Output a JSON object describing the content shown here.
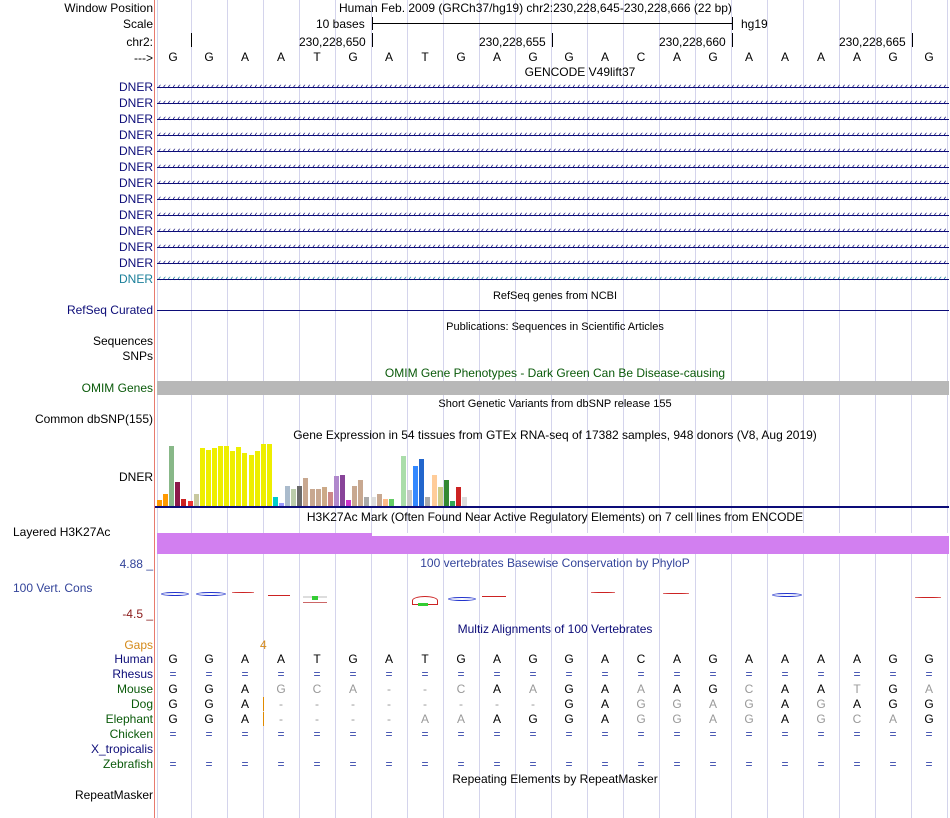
{
  "header": {
    "window_position_label": "Window Position",
    "assembly_text": "Human Feb. 2009 (GRCh37/hg19)   chr2:230,228,645-230,228,666 (22 bp)",
    "scale_label": "Scale",
    "scale_text": "10 bases",
    "scale_db": "hg19",
    "chrom_label": "chr2:",
    "positions": [
      "230,228,650",
      "230,228,655",
      "230,228,660",
      "230,228,665"
    ],
    "strand_label": "--->"
  },
  "sequence": [
    "G",
    "G",
    "A",
    "A",
    "T",
    "G",
    "A",
    "T",
    "G",
    "A",
    "G",
    "G",
    "A",
    "C",
    "A",
    "G",
    "A",
    "A",
    "A",
    "A",
    "G",
    "G"
  ],
  "gencode": {
    "title": "GENCODE V49lift37",
    "rows": [
      "DNER",
      "DNER",
      "DNER",
      "DNER",
      "DNER",
      "DNER",
      "DNER",
      "DNER",
      "DNER",
      "DNER",
      "DNER",
      "DNER"
    ],
    "last_row": "DNER",
    "arrows": "‹‹‹‹‹‹‹‹‹‹‹‹‹‹‹‹‹‹‹‹‹‹‹‹‹‹‹‹‹‹‹‹‹‹‹‹‹‹‹‹‹‹‹‹‹‹‹‹‹‹‹‹‹‹‹‹‹‹‹‹‹‹‹‹‹‹‹‹‹‹‹‹‹‹‹‹‹‹‹‹‹‹‹‹‹‹‹‹‹‹‹‹‹‹‹‹‹‹‹‹‹‹‹‹‹‹‹‹‹‹‹‹‹‹‹‹‹‹‹‹‹‹‹‹‹‹‹‹‹‹‹‹‹‹‹‹‹‹‹‹‹‹‹‹‹‹‹‹‹‹‹‹‹‹‹‹‹‹‹‹‹‹‹‹"
  },
  "refseq": {
    "title": "RefSeq genes from NCBI",
    "label": "RefSeq Curated"
  },
  "publications": {
    "title": "Publications: Sequences in Scientific Articles",
    "label1": "Sequences",
    "label2": "SNPs"
  },
  "omim": {
    "title": "OMIM Gene Phenotypes - Dark Green Can Be Disease-causing",
    "label": "OMIM Genes"
  },
  "dbsnp": {
    "title": "Short Genetic Variants from dbSNP release 155",
    "label": "Common dbSNP(155)"
  },
  "gtex": {
    "title": "Gene Expression in 54 tissues from GTEx RNA-seq of 17382 samples, 948 donors (V8, Aug 2019)",
    "label": "DNER",
    "bars": [
      {
        "v": 0.1,
        "c": "#ff9a00"
      },
      {
        "v": 0.2,
        "c": "#ff9a00"
      },
      {
        "v": 0.97,
        "c": "#88b888"
      },
      {
        "v": 0.38,
        "c": "#8c1a4a"
      },
      {
        "v": 0.12,
        "c": "#cc2222"
      },
      {
        "v": 0.08,
        "c": "#ee3333"
      },
      {
        "v": 0.2,
        "c": "#c8c8a0"
      },
      {
        "v": 0.93,
        "c": "#eeee00"
      },
      {
        "v": 0.9,
        "c": "#eeee00"
      },
      {
        "v": 0.93,
        "c": "#eeee00"
      },
      {
        "v": 0.97,
        "c": "#eeee00"
      },
      {
        "v": 0.97,
        "c": "#eeee00"
      },
      {
        "v": 0.88,
        "c": "#eeee00"
      },
      {
        "v": 0.95,
        "c": "#eeee00"
      },
      {
        "v": 0.85,
        "c": "#eeee00"
      },
      {
        "v": 0.82,
        "c": "#eeee00"
      },
      {
        "v": 0.88,
        "c": "#eeee00"
      },
      {
        "v": 1.0,
        "c": "#eeee00"
      },
      {
        "v": 1.0,
        "c": "#eeee00"
      },
      {
        "v": 0.15,
        "c": "#00cccc"
      },
      {
        "v": 0.05,
        "c": "#9999ff"
      },
      {
        "v": 0.32,
        "c": "#aabbcc"
      },
      {
        "v": 0.28,
        "c": "#bbccaa"
      },
      {
        "v": 0.32,
        "c": "#6a6a6a"
      },
      {
        "v": 0.45,
        "c": "#c8a890"
      },
      {
        "v": 0.28,
        "c": "#c8a890"
      },
      {
        "v": 0.28,
        "c": "#c8a890"
      },
      {
        "v": 0.3,
        "c": "#ccaa88"
      },
      {
        "v": 0.22,
        "c": "#cc8888"
      },
      {
        "v": 0.48,
        "c": "#b088cc"
      },
      {
        "v": 0.5,
        "c": "#884499"
      },
      {
        "v": 0.1,
        "c": "#cc33cc"
      },
      {
        "v": 0.32,
        "c": "#c8a890"
      },
      {
        "v": 0.42,
        "c": "#c8a890"
      },
      {
        "v": 0.15,
        "c": "#aaaaaa"
      },
      {
        "v": 0.15,
        "c": "#dddddd"
      },
      {
        "v": 0.2,
        "c": "#c8a890"
      },
      {
        "v": 0.12,
        "c": "#ffbb88"
      },
      {
        "v": 0.12,
        "c": "#66cc66"
      },
      {
        "v": 0.0,
        "c": "#ffffff"
      },
      {
        "v": 0.8,
        "c": "#aaddaa"
      },
      {
        "v": 0.25,
        "c": "#c8c8c8"
      },
      {
        "v": 0.65,
        "c": "#3388ff"
      },
      {
        "v": 0.75,
        "c": "#2266cc"
      },
      {
        "v": 0.15,
        "c": "#aaaaaa"
      },
      {
        "v": 0.5,
        "c": "#ffcc99"
      },
      {
        "v": 0.3,
        "c": "#cccc88"
      },
      {
        "v": 0.42,
        "c": "#338833"
      },
      {
        "v": 0.08,
        "c": "#33aa55"
      },
      {
        "v": 0.3,
        "c": "#cc2222"
      },
      {
        "v": 0.15,
        "c": "#dddddd"
      },
      {
        "v": 0.0,
        "c": "#ffffff"
      },
      {
        "v": 0.0,
        "c": "#ffffff"
      },
      {
        "v": 0.0,
        "c": "#ffffff"
      }
    ]
  },
  "h3k27ac": {
    "title": "H3K27Ac Mark (Often Found Near Active Regulatory Elements) on 7 cell lines from ENCODE",
    "label": "Layered H3K27Ac"
  },
  "phylop": {
    "title": "100 vertebrates Basewise Conservation by PhyloP",
    "label": "100 Vert. Cons",
    "max": "4.88 _",
    "min": "-4.5 _"
  },
  "multiz": {
    "title": "Multiz Alignments of 100 Vertebrates",
    "gaps_label": "Gaps",
    "gaps_value": "4",
    "species": [
      {
        "name": "Human",
        "bases": [
          "G",
          "G",
          "A",
          "A",
          "T",
          "G",
          "A",
          "T",
          "G",
          "A",
          "G",
          "G",
          "A",
          "C",
          "A",
          "G",
          "A",
          "A",
          "A",
          "A",
          "G",
          "G"
        ]
      },
      {
        "name": "Rhesus",
        "bases": [
          "=",
          "=",
          "=",
          "=",
          "=",
          "=",
          "=",
          "=",
          "=",
          "=",
          "=",
          "=",
          "=",
          "=",
          "=",
          "=",
          "=",
          "=",
          "=",
          "=",
          "=",
          "="
        ]
      },
      {
        "name": "Mouse",
        "bases": [
          "G",
          "G",
          "A",
          "G",
          "C",
          "A",
          "-",
          "-",
          "C",
          "A",
          "A",
          "G",
          "A",
          "A",
          "A",
          "G",
          "C",
          "A",
          "A",
          "T",
          "G",
          "A"
        ]
      },
      {
        "name": "Dog",
        "bases": [
          "G",
          "G",
          "A",
          "-",
          "-",
          "-",
          "-",
          "-",
          "-",
          "-",
          "-",
          "G",
          "A",
          "G",
          "G",
          "A",
          "G",
          "A",
          "G",
          "A",
          "G",
          "G"
        ]
      },
      {
        "name": "Elephant",
        "bases": [
          "G",
          "G",
          "A",
          "-",
          "-",
          "-",
          "-",
          "A",
          "A",
          "A",
          "G",
          "G",
          "A",
          "G",
          "G",
          "A",
          "G",
          "A",
          "G",
          "C",
          "A",
          "G"
        ]
      },
      {
        "name": "Chicken",
        "bases": [
          "=",
          "=",
          "=",
          "=",
          "=",
          "=",
          "=",
          "=",
          "=",
          "=",
          "=",
          "=",
          "=",
          "=",
          "=",
          "=",
          "=",
          "=",
          "=",
          "=",
          "=",
          "="
        ]
      },
      {
        "name": "X_tropicalis",
        "bases": [
          "",
          "",
          "",
          "",
          "",
          "",
          "",
          "",
          "",
          "",
          "",
          "",
          "",
          "",
          "",
          "",
          "",
          "",
          "",
          "",
          "",
          ""
        ]
      },
      {
        "name": "Zebrafish",
        "bases": [
          "=",
          "=",
          "=",
          "=",
          "=",
          "=",
          "=",
          "=",
          "=",
          "=",
          "=",
          "=",
          "=",
          "=",
          "=",
          "=",
          "=",
          "=",
          "=",
          "=",
          "=",
          "="
        ]
      }
    ]
  },
  "repeatmasker": {
    "title": "Repeating Elements by RepeatMasker",
    "label": "RepeatMasker"
  }
}
